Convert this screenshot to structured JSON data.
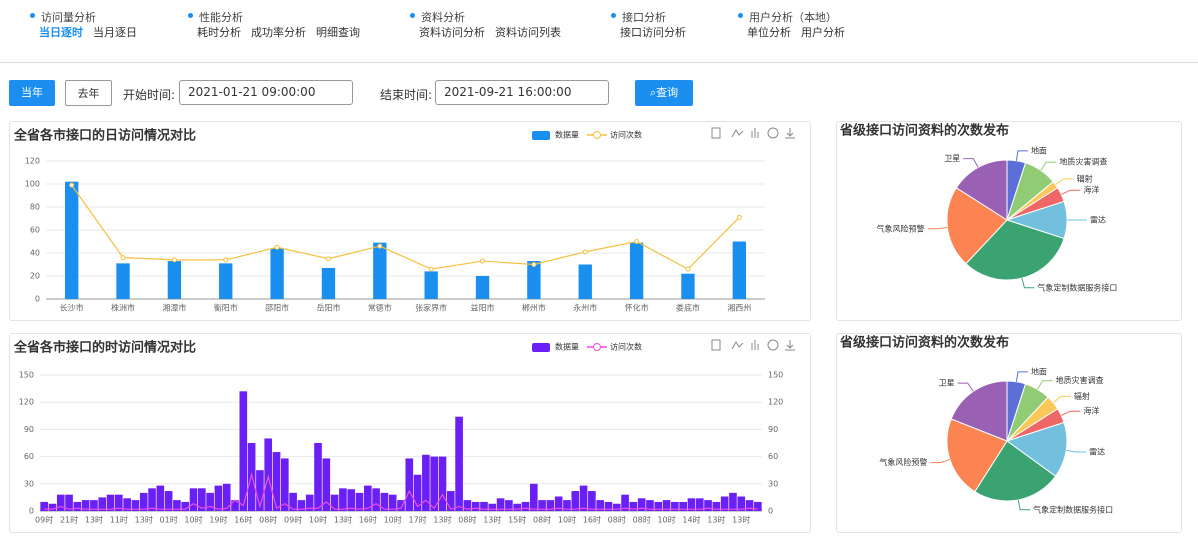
{
  "nav": [
    {
      "title": "访问量分析",
      "items": [
        "当日逐时",
        "当月逐日"
      ]
    },
    {
      "title": "性能分析",
      "items": [
        "耗时分析",
        "成功率分析",
        "明细查询"
      ]
    },
    {
      "title": "资料分析",
      "items": [
        "资料访问分析",
        "资料访问列表"
      ]
    },
    {
      "title": "接口分析",
      "items": [
        "接口访问分析"
      ]
    },
    {
      "title": "用户分析（本地）",
      "items": [
        "单位分析",
        "用户分析"
      ]
    }
  ],
  "toolbar": {
    "this_year": "当年",
    "last_year": "去年",
    "start_label": "开始时间:",
    "start": "2021-01-21 09:00:00",
    "end_label": "结束时间:",
    "end": "2021-09-21 16:00:00",
    "query": "查询"
  },
  "chart_data": [
    {
      "type": "bar",
      "title": "全省各市接口的日访问情况对比",
      "categories": [
        "长沙市",
        "株洲市",
        "湘潭市",
        "衡阳市",
        "邵阳市",
        "岳阳市",
        "常德市",
        "张家界市",
        "益阳市",
        "郴州市",
        "永州市",
        "怀化市",
        "娄底市",
        "湘西州"
      ],
      "series": [
        {
          "name": "数据量",
          "type": "bar",
          "color": "#1a8ff0",
          "values": [
            102,
            31,
            33,
            31,
            44,
            27,
            49,
            24,
            20,
            33,
            30,
            49,
            22,
            50
          ]
        },
        {
          "name": "访问次数",
          "type": "line",
          "color": "#f5c040",
          "values": [
            99,
            36,
            34,
            34,
            45,
            35,
            46,
            26,
            33,
            30,
            41,
            50,
            26,
            71
          ]
        }
      ],
      "ylim": [
        0,
        120
      ],
      "yticks": [
        0,
        20,
        40,
        60,
        80,
        100,
        120
      ],
      "grid": true
    },
    {
      "type": "pie",
      "title": "省级接口访问资料的次数发布",
      "categories": [
        "地面",
        "地质灾害调查",
        "辐射",
        "海洋",
        "雷达",
        "气象定制数据服务接口",
        "气象风险预警",
        "卫星"
      ],
      "values": [
        5,
        9,
        2,
        4,
        10,
        32,
        22,
        16
      ],
      "colors": [
        "#5b6fd6",
        "#91cc75",
        "#fac858",
        "#ee6666",
        "#73c0de",
        "#3ba272",
        "#fc8452",
        "#9a60b4"
      ]
    },
    {
      "type": "bar",
      "title": "全省各市接口的时访问情况对比",
      "categories": [
        "09时",
        null,
        null,
        "21时",
        null,
        null,
        "13时",
        null,
        null,
        "11时",
        null,
        null,
        "13时",
        null,
        null,
        "01时",
        null,
        null,
        "10时",
        null,
        null,
        "19时",
        null,
        null,
        "16时",
        null,
        null,
        "08时",
        null,
        null,
        "09时",
        null,
        null,
        "10时",
        null,
        null,
        "13时",
        null,
        null,
        "16时",
        null,
        null,
        "10时",
        null,
        null,
        "17时",
        null,
        null,
        "13时",
        null,
        null,
        "08时",
        null,
        null,
        "13时",
        null,
        null,
        "15时",
        null,
        null,
        "08时",
        null,
        null,
        "10时",
        null,
        null,
        "16时",
        null,
        null,
        "08时",
        null,
        null,
        "08时",
        null,
        null,
        "10时",
        null,
        null,
        "14时",
        null,
        null,
        "13时",
        null,
        null,
        "13时",
        null,
        null
      ],
      "series": [
        {
          "name": "数据量",
          "type": "bar",
          "color": "#6a1ff5",
          "values": [
            10,
            8,
            18,
            18,
            10,
            12,
            12,
            15,
            18,
            18,
            14,
            12,
            20,
            25,
            28,
            22,
            12,
            10,
            25,
            25,
            20,
            28,
            30,
            12,
            132,
            75,
            45,
            80,
            65,
            58,
            20,
            12,
            18,
            75,
            58,
            18,
            25,
            24,
            20,
            28,
            25,
            20,
            18,
            12,
            58,
            40,
            62,
            60,
            60,
            22,
            104,
            12,
            10,
            10,
            8,
            14,
            12,
            8,
            10,
            30,
            12,
            12,
            16,
            12,
            22,
            28,
            22,
            12,
            10,
            8,
            18,
            10,
            14,
            12,
            10,
            12,
            10,
            10,
            14,
            14,
            12,
            10,
            16,
            20,
            16,
            12,
            10
          ]
        },
        {
          "name": "访问次数",
          "type": "line",
          "color": "#f04ce0",
          "axis": "y2",
          "values": [
            2,
            2,
            5,
            2,
            3,
            2,
            2,
            2,
            2,
            3,
            2,
            2,
            2,
            3,
            2,
            2,
            2,
            2,
            8,
            3,
            5,
            2,
            3,
            12,
            6,
            40,
            5,
            38,
            3,
            8,
            2,
            2,
            3,
            3,
            10,
            2,
            2,
            3,
            2,
            3,
            8,
            2,
            2,
            3,
            22,
            5,
            12,
            3,
            18,
            2,
            5,
            2,
            3,
            2,
            2,
            2,
            2,
            2,
            3,
            2,
            2,
            2,
            3,
            2,
            2,
            3,
            2,
            2,
            2,
            2,
            3,
            2,
            3,
            2,
            2,
            2,
            2,
            2,
            2,
            2,
            3,
            2,
            2,
            2,
            2,
            3,
            2
          ]
        }
      ],
      "ylim": [
        0,
        150
      ],
      "yticks": [
        0,
        30,
        60,
        90,
        120,
        150
      ],
      "y2lim": [
        0,
        150
      ],
      "y2ticks": [
        0,
        30,
        60,
        90,
        120,
        150
      ],
      "grid": true
    },
    {
      "type": "pie",
      "title": "省级接口访问资料的次数发布",
      "categories": [
        "地面",
        "地质灾害调查",
        "辐射",
        "海洋",
        "雷达",
        "气象定制数据服务接口",
        "气象风险预警",
        "卫星"
      ],
      "values": [
        5,
        7,
        4,
        4,
        15,
        24,
        22,
        19
      ],
      "colors": [
        "#5b6fd6",
        "#91cc75",
        "#fac858",
        "#ee6666",
        "#73c0de",
        "#3ba272",
        "#fc8452",
        "#9a60b4"
      ]
    }
  ]
}
